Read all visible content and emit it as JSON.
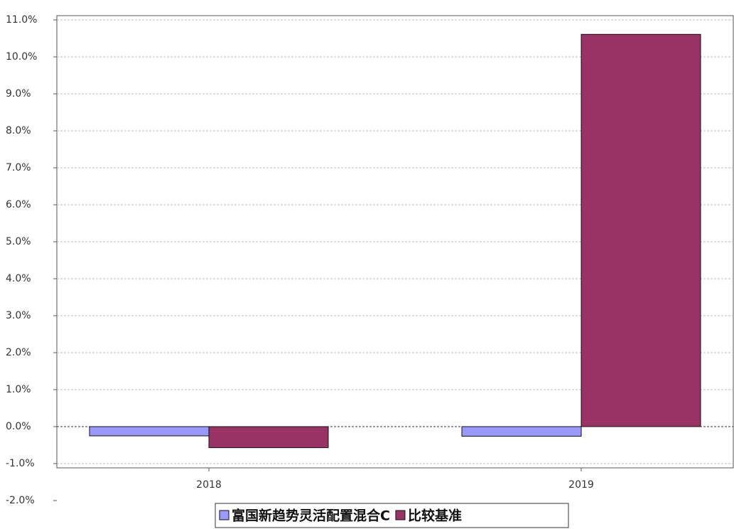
{
  "chart_data": {
    "type": "bar",
    "categories": [
      "2018",
      "2019"
    ],
    "series": [
      {
        "name": "富国新趋势灵活配置混合C",
        "color": "#9999ff",
        "values": [
          -0.25,
          -0.26
        ]
      },
      {
        "name": "比较基准",
        "color": "#993366",
        "values": [
          -0.57,
          10.61
        ]
      }
    ],
    "ylim": [
      -2.0,
      11.0
    ],
    "yticks": [
      {
        "value": -2,
        "label": "-2.0%"
      },
      {
        "value": -1,
        "label": "-1.0%"
      },
      {
        "value": 0,
        "label": "0.0%"
      },
      {
        "value": 1,
        "label": "1.0%"
      },
      {
        "value": 2,
        "label": "2.0%"
      },
      {
        "value": 3,
        "label": "3.0%"
      },
      {
        "value": 4,
        "label": "4.0%"
      },
      {
        "value": 5,
        "label": "5.0%"
      },
      {
        "value": 6,
        "label": "6.0%"
      },
      {
        "value": 7,
        "label": "7.0%"
      },
      {
        "value": 8,
        "label": "8.0%"
      },
      {
        "value": 9,
        "label": "9.0%"
      },
      {
        "value": 10,
        "label": "10.0%"
      },
      {
        "value": 11,
        "label": "11.0%"
      }
    ],
    "grid": true
  }
}
